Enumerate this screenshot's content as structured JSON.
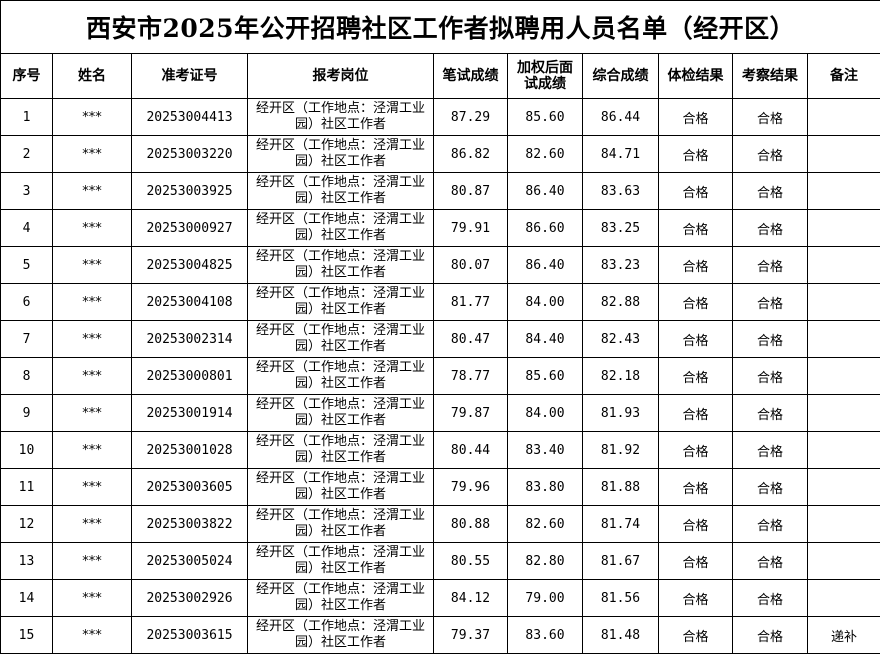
{
  "title": "西安市2025年公开招聘社区工作者拟聘用人员名单（经开区）",
  "headers": [
    "序号",
    "姓名",
    "准考证号",
    "报考岗位",
    "笔试成绩",
    "加权后面试成绩",
    "综合成绩",
    "体检结果",
    "考察结果",
    "备注"
  ],
  "rows": [
    [
      "1",
      "***",
      "20253004413",
      "经开区（工作地点：泾渭工业园）社区工作者",
      "87.29",
      "85.60",
      "86.44",
      "合格",
      "合格",
      ""
    ],
    [
      "2",
      "***",
      "20253003220",
      "经开区（工作地点：泾渭工业园）社区工作者",
      "86.82",
      "82.60",
      "84.71",
      "合格",
      "合格",
      ""
    ],
    [
      "3",
      "***",
      "20253003925",
      "经开区（工作地点：泾渭工业园）社区工作者",
      "80.87",
      "86.40",
      "83.63",
      "合格",
      "合格",
      ""
    ],
    [
      "4",
      "***",
      "20253000927",
      "经开区（工作地点：泾渭工业园）社区工作者",
      "79.91",
      "86.60",
      "83.25",
      "合格",
      "合格",
      ""
    ],
    [
      "5",
      "***",
      "20253004825",
      "经开区（工作地点：泾渭工业园）社区工作者",
      "80.07",
      "86.40",
      "83.23",
      "合格",
      "合格",
      ""
    ],
    [
      "6",
      "***",
      "20253004108",
      "经开区（工作地点：泾渭工业园）社区工作者",
      "81.77",
      "84.00",
      "82.88",
      "合格",
      "合格",
      ""
    ],
    [
      "7",
      "***",
      "20253002314",
      "经开区（工作地点：泾渭工业园）社区工作者",
      "80.47",
      "84.40",
      "82.43",
      "合格",
      "合格",
      ""
    ],
    [
      "8",
      "***",
      "20253000801",
      "经开区（工作地点：泾渭工业园）社区工作者",
      "78.77",
      "85.60",
      "82.18",
      "合格",
      "合格",
      ""
    ],
    [
      "9",
      "***",
      "20253001914",
      "经开区（工作地点：泾渭工业园）社区工作者",
      "79.87",
      "84.00",
      "81.93",
      "合格",
      "合格",
      ""
    ],
    [
      "10",
      "***",
      "20253001028",
      "经开区（工作地点：泾渭工业园）社区工作者",
      "80.44",
      "83.40",
      "81.92",
      "合格",
      "合格",
      ""
    ],
    [
      "11",
      "***",
      "20253003605",
      "经开区（工作地点：泾渭工业园）社区工作者",
      "79.96",
      "83.80",
      "81.88",
      "合格",
      "合格",
      ""
    ],
    [
      "12",
      "***",
      "20253003822",
      "经开区（工作地点：泾渭工业园）社区工作者",
      "80.88",
      "82.60",
      "81.74",
      "合格",
      "合格",
      ""
    ],
    [
      "13",
      "***",
      "20253005024",
      "经开区（工作地点：泾渭工业园）社区工作者",
      "80.55",
      "82.80",
      "81.67",
      "合格",
      "合格",
      ""
    ],
    [
      "14",
      "***",
      "20253002926",
      "经开区（工作地点：泾渭工业园）社区工作者",
      "84.12",
      "79.00",
      "81.56",
      "合格",
      "合格",
      ""
    ],
    [
      "15",
      "***",
      "20253003615",
      "经开区（工作地点：泾渭工业园）社区工作者",
      "79.37",
      "83.60",
      "81.48",
      "合格",
      "合格",
      "递补"
    ]
  ]
}
